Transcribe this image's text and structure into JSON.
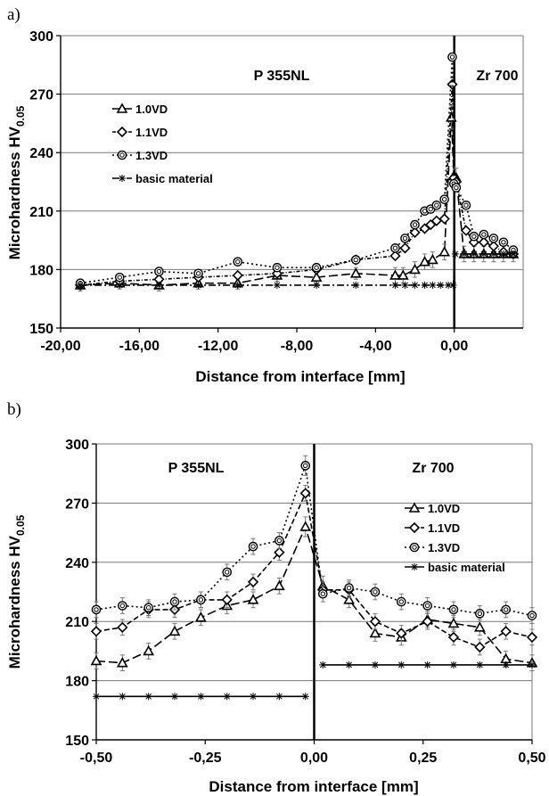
{
  "chart_data": [
    {
      "type": "line",
      "panel_label": "a)",
      "xlabel": "Distance from interface [mm]",
      "ylabel_main": "Microhardness HV",
      "ylabel_sub": "0.05",
      "xlim": [
        -20,
        3.5
      ],
      "ylim": [
        150,
        300
      ],
      "xticks": [
        -20,
        -16,
        -12,
        -8,
        -4,
        0
      ],
      "xtick_labels": [
        "-20,00",
        "-16,00",
        "-12,00",
        "-8,00",
        "-4,00",
        "0,00"
      ],
      "yticks": [
        150,
        180,
        210,
        240,
        270,
        300
      ],
      "ytick_labels": [
        "150",
        "180",
        "210",
        "240",
        "270",
        "300"
      ],
      "regions": {
        "left": "P 355NL",
        "right": "Zr 700"
      },
      "grid": "horizontal",
      "legend_position": "left",
      "series": [
        {
          "name": "1.0VD",
          "marker": "triangle",
          "dash": "10,4",
          "x": [
            -19,
            -17,
            -15,
            -13,
            -11,
            -9,
            -7,
            -5,
            -3,
            -2.6,
            -2,
            -1.5,
            -1.1,
            -0.5,
            -0.15,
            -0.02,
            0.1,
            0.5,
            1,
            1.5,
            2,
            2.5,
            3
          ],
          "y": [
            172,
            173,
            172,
            173,
            173,
            177,
            176,
            178,
            177,
            177,
            180,
            184,
            185,
            189,
            258,
            228,
            227,
            188,
            188,
            188,
            188,
            188,
            188
          ],
          "err": [
            3,
            3,
            3,
            3,
            3,
            3,
            3,
            3,
            4,
            4,
            4,
            4,
            4,
            4,
            6,
            5,
            5,
            4,
            4,
            4,
            4,
            4,
            4
          ]
        },
        {
          "name": "1.1VD",
          "marker": "diamond",
          "dash": "4,2,1,2",
          "x": [
            -19,
            -17,
            -15,
            -13,
            -11,
            -9,
            -7,
            -5,
            -3,
            -2.5,
            -2,
            -1.5,
            -1.2,
            -0.9,
            -0.5,
            -0.1,
            -0.02,
            0.1,
            0.6,
            1,
            1.5,
            2,
            2.5,
            3
          ],
          "y": [
            172,
            174,
            175,
            176,
            177,
            178,
            180,
            185,
            187,
            191,
            199,
            201,
            203,
            205,
            206,
            275,
            227,
            225,
            200,
            194,
            194,
            192,
            189,
            188
          ],
          "err": [
            0,
            0,
            0,
            0,
            0,
            0,
            0,
            0,
            0,
            0,
            0,
            0,
            0,
            0,
            0,
            0,
            0,
            0,
            0,
            0,
            0,
            0,
            0,
            0
          ]
        },
        {
          "name": "1.3VD",
          "marker": "circle",
          "dash": "2,3",
          "x": [
            -19,
            -17,
            -15,
            -13,
            -11,
            -9,
            -7,
            -5,
            -3,
            -2.5,
            -2,
            -1.5,
            -1.2,
            -0.9,
            -0.5,
            -0.1,
            -0.02,
            0.1,
            0.6,
            1,
            1.5,
            2,
            2.5,
            3
          ],
          "y": [
            173,
            176,
            179,
            178,
            184,
            181,
            181,
            185,
            191,
            196,
            203,
            210,
            211,
            213,
            216,
            289,
            224,
            222,
            213,
            197,
            198,
            196,
            194,
            190
          ],
          "err": [
            0,
            0,
            0,
            0,
            0,
            0,
            0,
            0,
            0,
            0,
            0,
            0,
            0,
            0,
            0,
            0,
            0,
            0,
            0,
            0,
            0,
            0,
            0,
            0
          ]
        },
        {
          "name": "basic material",
          "marker": "star",
          "dash": "8,3,2,3",
          "x": [
            -19,
            -17,
            -15,
            -13,
            -11,
            -9,
            -7,
            -5,
            -3,
            -2.5,
            -2,
            -1.5,
            -1.1,
            -0.7,
            -0.3,
            -0.05,
            0.05,
            0.5,
            1,
            1.5,
            2,
            2.5,
            3
          ],
          "y": [
            172,
            172,
            172,
            172,
            172,
            172,
            172,
            172,
            172,
            172,
            172,
            172,
            172,
            172,
            172,
            172,
            188,
            188,
            188,
            188,
            188,
            188,
            188
          ],
          "err": [
            0,
            0,
            0,
            0,
            0,
            0,
            0,
            0,
            0,
            0,
            0,
            0,
            0,
            0,
            0,
            0,
            0,
            0,
            0,
            0,
            0,
            0,
            0
          ]
        }
      ]
    },
    {
      "type": "line",
      "panel_label": "b)",
      "xlabel": "Distance from interface [mm]",
      "ylabel_main": "Microhardness HV",
      "ylabel_sub": "0.05",
      "xlim": [
        -0.5,
        0.5
      ],
      "ylim": [
        150,
        300
      ],
      "xticks": [
        -0.5,
        -0.25,
        0,
        0.25,
        0.5
      ],
      "xtick_labels": [
        "-0,50",
        "-0,25",
        "0,00",
        "0,25",
        "0,50"
      ],
      "yticks": [
        150,
        180,
        210,
        240,
        270,
        300
      ],
      "ytick_labels": [
        "150",
        "180",
        "210",
        "240",
        "270",
        "300"
      ],
      "regions": {
        "left": "P 355NL",
        "right": "Zr 700"
      },
      "grid": "horizontal",
      "legend_position": "right",
      "series": [
        {
          "name": "1.0VD",
          "marker": "triangle",
          "dash": "10,4",
          "x": [
            -0.5,
            -0.44,
            -0.38,
            -0.32,
            -0.26,
            -0.2,
            -0.14,
            -0.08,
            -0.02,
            0.02,
            0.08,
            0.14,
            0.2,
            0.26,
            0.32,
            0.38,
            0.44,
            0.5
          ],
          "y": [
            190,
            189,
            195,
            205,
            212,
            218,
            221,
            228,
            258,
            228,
            221,
            204,
            202,
            211,
            209,
            207,
            191,
            189
          ],
          "err": [
            4,
            4,
            4,
            4,
            4,
            4,
            4,
            4,
            5,
            5,
            4,
            4,
            4,
            4,
            4,
            4,
            4,
            4
          ]
        },
        {
          "name": "1.1VD",
          "marker": "diamond",
          "dash": "6,3",
          "x": [
            -0.5,
            -0.44,
            -0.38,
            -0.32,
            -0.26,
            -0.2,
            -0.14,
            -0.08,
            -0.02,
            0.02,
            0.08,
            0.14,
            0.2,
            0.26,
            0.32,
            0.38,
            0.44,
            0.5
          ],
          "y": [
            205,
            207,
            216,
            216,
            221,
            221,
            230,
            245,
            275,
            226,
            226,
            210,
            204,
            210,
            202,
            197,
            205,
            202
          ],
          "err": [
            4,
            4,
            4,
            4,
            4,
            4,
            4,
            4,
            4,
            4,
            4,
            4,
            4,
            4,
            4,
            4,
            4,
            4
          ]
        },
        {
          "name": "1.3VD",
          "marker": "circle",
          "dash": "2,3",
          "x": [
            -0.5,
            -0.44,
            -0.38,
            -0.32,
            -0.26,
            -0.2,
            -0.14,
            -0.08,
            -0.02,
            0.02,
            0.08,
            0.14,
            0.2,
            0.26,
            0.32,
            0.38,
            0.44,
            0.5
          ],
          "y": [
            216,
            218,
            217,
            220,
            221,
            235,
            248,
            251,
            289,
            224,
            227,
            225,
            220,
            218,
            216,
            214,
            216,
            213
          ],
          "err": [
            4,
            4,
            4,
            4,
            4,
            4,
            4,
            4,
            5,
            4,
            4,
            4,
            4,
            4,
            4,
            4,
            4,
            4
          ]
        },
        {
          "name": "basic material",
          "marker": "star",
          "dash": "",
          "x": [
            -0.5,
            -0.44,
            -0.38,
            -0.32,
            -0.26,
            -0.2,
            -0.14,
            -0.08,
            -0.02
          ],
          "y": [
            172,
            172,
            172,
            172,
            172,
            172,
            172,
            172,
            172
          ],
          "err": [
            0,
            0,
            0,
            0,
            0,
            0,
            0,
            0,
            0
          ],
          "x2": [
            0.02,
            0.08,
            0.14,
            0.2,
            0.26,
            0.32,
            0.38,
            0.44,
            0.5
          ],
          "y2": [
            188,
            188,
            188,
            188,
            188,
            188,
            188,
            188,
            188
          ]
        }
      ]
    }
  ]
}
